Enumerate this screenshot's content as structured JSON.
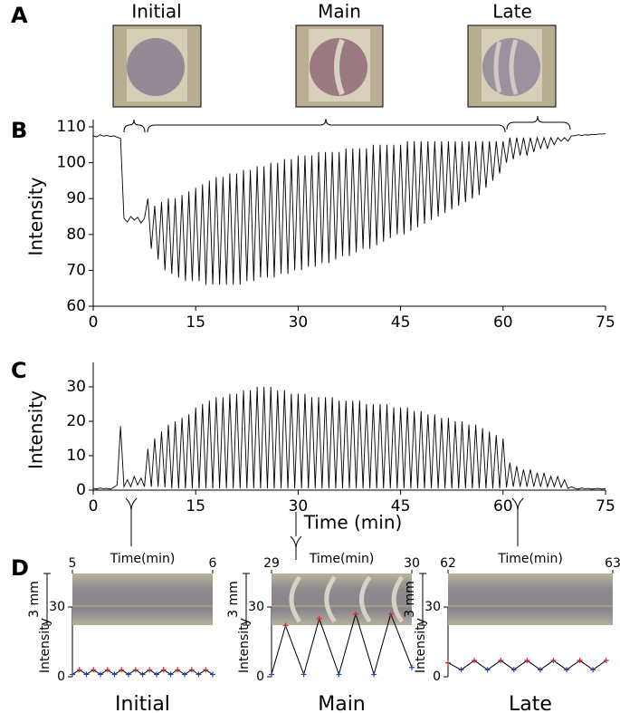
{
  "panel_labels": {
    "A": "A",
    "B": "B",
    "C": "C",
    "D": "D"
  },
  "photos": {
    "labels": [
      "Initial",
      "Main",
      "Late"
    ]
  },
  "chart_data": [
    {
      "type": "line",
      "ylabel": "Intensity",
      "color": "#000000",
      "xlim": [
        0,
        75
      ],
      "xticks": [
        0,
        15,
        30,
        45,
        60,
        75
      ],
      "ylim": [
        60,
        110
      ],
      "yticks": [
        60,
        70,
        80,
        90,
        100,
        110
      ],
      "x": [
        0,
        0.5,
        1,
        1.5,
        2,
        2.5,
        3,
        3.5,
        4,
        4.5,
        5,
        5.5,
        6,
        6.5,
        7,
        7.5,
        8,
        8.5,
        9,
        9.5,
        10,
        10.5,
        11,
        11.5,
        12,
        12.5,
        13,
        13.5,
        14,
        14.5,
        15,
        15.5,
        16,
        16.5,
        17,
        17.5,
        18,
        18.5,
        19,
        19.5,
        20,
        20.5,
        21,
        21.5,
        22,
        22.5,
        23,
        23.5,
        24,
        24.5,
        25,
        25.5,
        26,
        26.5,
        27,
        27.5,
        28,
        28.5,
        29,
        29.5,
        30,
        30.5,
        31,
        31.5,
        32,
        32.5,
        33,
        33.5,
        34,
        34.5,
        35,
        35.5,
        36,
        36.5,
        37,
        37.5,
        38,
        38.5,
        39,
        39.5,
        40,
        40.5,
        41,
        41.5,
        42,
        42.5,
        43,
        43.5,
        44,
        44.5,
        45,
        45.5,
        46,
        46.5,
        47,
        47.5,
        48,
        48.5,
        49,
        49.5,
        50,
        50.5,
        51,
        51.5,
        52,
        52.5,
        53,
        53.5,
        54,
        54.5,
        55,
        55.5,
        56,
        56.5,
        57,
        57.5,
        58,
        58.5,
        59,
        59.5,
        60,
        60.5,
        61,
        61.5,
        62,
        62.5,
        63,
        63.5,
        64,
        64.5,
        65,
        65.5,
        66,
        66.5,
        67,
        67.5,
        68,
        68.5,
        69,
        69.5,
        70,
        70.5,
        71,
        71.5,
        72,
        72.5,
        73,
        73.5,
        74,
        74.5,
        75
      ],
      "values": [
        107.5,
        107.2,
        107.8,
        107.4,
        107.6,
        107.3,
        107.5,
        107.1,
        106.8,
        84.5,
        83.5,
        85,
        84,
        84.8,
        83.2,
        84.5,
        90,
        76,
        88,
        73,
        89,
        70,
        90,
        69,
        90,
        68,
        91,
        67,
        92,
        67,
        93,
        67,
        94,
        66,
        95,
        66,
        96,
        66,
        96,
        66,
        97,
        66,
        97,
        66,
        98,
        67,
        98,
        67,
        99,
        68,
        99,
        68,
        100,
        68,
        100,
        69,
        101,
        69,
        101,
        70,
        102,
        70,
        102,
        71,
        102,
        71,
        103,
        72,
        103,
        72,
        103,
        73,
        103,
        74,
        104,
        74,
        104,
        75,
        104,
        76,
        104,
        76,
        105,
        77,
        105,
        78,
        105,
        79,
        105,
        80,
        105,
        80,
        106,
        81,
        106,
        82,
        106,
        83,
        106,
        84,
        106,
        85,
        106,
        86,
        106,
        87,
        106,
        88,
        106,
        89,
        106,
        90,
        106,
        91,
        106,
        93,
        106,
        95,
        106,
        97,
        106,
        100,
        107,
        101,
        107,
        102,
        107,
        102,
        107,
        103,
        107,
        104,
        107,
        104,
        107,
        105,
        107,
        106,
        107,
        106,
        107.5,
        107.5,
        107.8,
        107.6,
        107.8,
        107.7,
        107.9,
        107.8,
        108,
        108,
        108.1
      ]
    },
    {
      "type": "line",
      "ylabel": "Intensity",
      "xlabel": "Time (min)",
      "color": "#000000",
      "xlim": [
        0,
        75
      ],
      "xticks": [
        0,
        15,
        30,
        45,
        60,
        75
      ],
      "ylim": [
        0,
        35
      ],
      "yticks": [
        0,
        10,
        20,
        30
      ],
      "x": [
        0,
        0.5,
        1,
        1.5,
        2,
        2.5,
        3,
        3.5,
        4,
        4.5,
        5,
        5.5,
        6,
        6.5,
        7,
        7.5,
        8,
        8.5,
        9,
        9.5,
        10,
        10.5,
        11,
        11.5,
        12,
        12.5,
        13,
        13.5,
        14,
        14.5,
        15,
        15.5,
        16,
        16.5,
        17,
        17.5,
        18,
        18.5,
        19,
        19.5,
        20,
        20.5,
        21,
        21.5,
        22,
        22.5,
        23,
        23.5,
        24,
        24.5,
        25,
        25.5,
        26,
        26.5,
        27,
        27.5,
        28,
        28.5,
        29,
        29.5,
        30,
        30.5,
        31,
        31.5,
        32,
        32.5,
        33,
        33.5,
        34,
        34.5,
        35,
        35.5,
        36,
        36.5,
        37,
        37.5,
        38,
        38.5,
        39,
        39.5,
        40,
        40.5,
        41,
        41.5,
        42,
        42.5,
        43,
        43.5,
        44,
        44.5,
        45,
        45.5,
        46,
        46.5,
        47,
        47.5,
        48,
        48.5,
        49,
        49.5,
        50,
        50.5,
        51,
        51.5,
        52,
        52.5,
        53,
        53.5,
        54,
        54.5,
        55,
        55.5,
        56,
        56.5,
        57,
        57.5,
        58,
        58.5,
        59,
        59.5,
        60,
        60.5,
        61,
        61.5,
        62,
        62.5,
        63,
        63.5,
        64,
        64.5,
        65,
        65.5,
        66,
        66.5,
        67,
        67.5,
        68,
        68.5,
        69,
        69.5,
        70,
        70.5,
        71,
        71.5,
        72,
        72.5,
        73,
        73.5,
        74,
        74.5,
        75
      ],
      "values": [
        0.5,
        0.3,
        0.6,
        0.4,
        0.5,
        0.3,
        0.8,
        1.5,
        18.5,
        1,
        3,
        1,
        4,
        1.5,
        3.5,
        1,
        12,
        1,
        15,
        1,
        17,
        0.8,
        19,
        0.5,
        20,
        0.5,
        21,
        0.5,
        22,
        0.5,
        24,
        0.5,
        25,
        0.5,
        26,
        0.5,
        27,
        0.5,
        27,
        0.5,
        28,
        0.5,
        28,
        0.5,
        29,
        0.5,
        29,
        0.5,
        30,
        0.5,
        30,
        0.5,
        30,
        0.5,
        29,
        0.5,
        29,
        0.5,
        28,
        0.5,
        28,
        0.5,
        28,
        0.5,
        27,
        0.5,
        27,
        0.5,
        27,
        0.5,
        27,
        0.5,
        26,
        0.5,
        26,
        0.5,
        26,
        0.5,
        26,
        0.5,
        25,
        0.5,
        25,
        0.5,
        25,
        0.5,
        25,
        0.5,
        24,
        0.5,
        24,
        0.5,
        24,
        0.5,
        23,
        0.5,
        23,
        0.5,
        22,
        0.5,
        22,
        0.5,
        21,
        0.5,
        21,
        0.5,
        20,
        0.5,
        20,
        0.5,
        19,
        0.5,
        19,
        0.5,
        18,
        0.5,
        17,
        0.5,
        16,
        0.5,
        15,
        0.8,
        8,
        1,
        7,
        1,
        6,
        1,
        6,
        1,
        5,
        1,
        5,
        1,
        4,
        1,
        4,
        0.8,
        3,
        0.5,
        1,
        0.5,
        0.3,
        0.6,
        0.4,
        0.5,
        0.3,
        0.4,
        0.5,
        0.3,
        0.4
      ]
    },
    {
      "type": "line",
      "xlabel": "Time(min)",
      "ylabel": "Intensity",
      "scale_bar": "3 mm",
      "caption": "Initial",
      "color": "#000000",
      "peak_color": "#d62728",
      "trough_color": "#2040c0",
      "xlim": [
        5,
        6
      ],
      "xticks": [
        5,
        6
      ],
      "ylim": [
        0,
        30
      ],
      "yticks": [
        0,
        30
      ],
      "x": [
        5,
        5.05,
        5.1,
        5.15,
        5.2,
        5.25,
        5.3,
        5.35,
        5.4,
        5.45,
        5.5,
        5.55,
        5.6,
        5.65,
        5.7,
        5.75,
        5.8,
        5.85,
        5.9,
        5.95,
        6
      ],
      "values": [
        1,
        3,
        1,
        3,
        1,
        3,
        1,
        3,
        1,
        3,
        1,
        3,
        1,
        3,
        1,
        3,
        1,
        3,
        1,
        3,
        1
      ]
    },
    {
      "type": "line",
      "xlabel": "Time(min)",
      "ylabel": "Intensity",
      "scale_bar": "3 mm",
      "caption": "Main",
      "color": "#000000",
      "peak_color": "#d62728",
      "trough_color": "#2040c0",
      "xlim": [
        29,
        30
      ],
      "xticks": [
        29,
        30
      ],
      "ylim": [
        0,
        30
      ],
      "yticks": [
        0,
        30
      ],
      "x": [
        29,
        29.1,
        29.23,
        29.34,
        29.48,
        29.6,
        29.73,
        29.85,
        30
      ],
      "values": [
        1,
        22,
        1,
        25,
        1,
        27,
        1,
        27,
        4
      ]
    },
    {
      "type": "line",
      "xlabel": "Time(min)",
      "ylabel": "Intensity",
      "scale_bar": "3 mm",
      "caption": "Late",
      "color": "#000000",
      "peak_color": "#d62728",
      "trough_color": "#2040c0",
      "xlim": [
        62,
        63
      ],
      "xticks": [
        62,
        63
      ],
      "ylim": [
        0,
        30
      ],
      "yticks": [
        0,
        30
      ],
      "x": [
        62,
        62.08,
        62.16,
        62.24,
        62.32,
        62.4,
        62.48,
        62.56,
        62.64,
        62.72,
        62.8,
        62.88,
        62.96
      ],
      "values": [
        6,
        3,
        7,
        3,
        7,
        3,
        7,
        3,
        7,
        3,
        7,
        3,
        7
      ]
    }
  ]
}
